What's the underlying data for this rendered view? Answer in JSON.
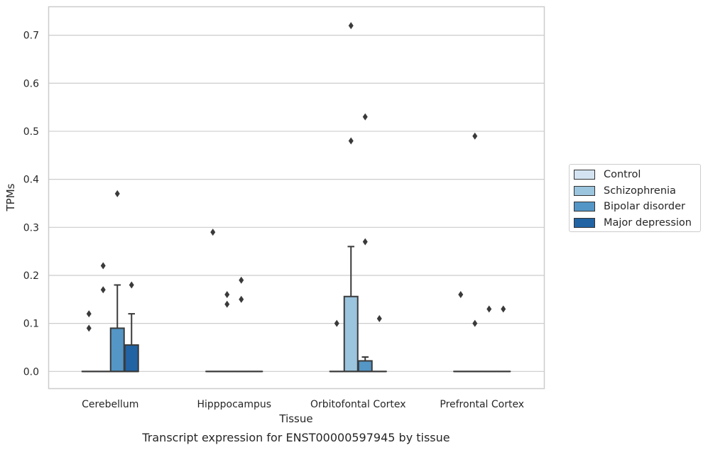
{
  "chart_data": {
    "type": "box",
    "title": "",
    "caption": "Transcript expression for ENST00000597945 by tissue",
    "xlabel": "Tissue",
    "ylabel": "TPMs",
    "ylim": [
      -0.035,
      0.76
    ],
    "yticks": [
      0.0,
      0.1,
      0.2,
      0.3,
      0.4,
      0.5,
      0.6,
      0.7
    ],
    "ytick_labels": [
      "0.0",
      "0.1",
      "0.2",
      "0.3",
      "0.4",
      "0.5",
      "0.6",
      "0.7"
    ],
    "grid": "horizontal",
    "legend_position": "right",
    "categories": [
      "Cerebellum",
      "Hipppocampus",
      "Orbitofontal Cortex",
      "Prefrontal Cortex"
    ],
    "series": [
      {
        "name": "Control",
        "color": "#d4e3f1",
        "boxes": [
          {
            "q1": 0.0,
            "median": 0.0,
            "q3": 0.0,
            "whisker_low": 0.0,
            "whisker_high": 0.0,
            "outliers": [
              0.09,
              0.12
            ]
          },
          {
            "q1": 0.0,
            "median": 0.0,
            "q3": 0.0,
            "whisker_low": 0.0,
            "whisker_high": 0.0,
            "outliers": [
              0.29
            ]
          },
          {
            "q1": 0.0,
            "median": 0.0,
            "q3": 0.0,
            "whisker_low": 0.0,
            "whisker_high": 0.0,
            "outliers": [
              0.1
            ]
          },
          {
            "q1": 0.0,
            "median": 0.0,
            "q3": 0.0,
            "whisker_low": 0.0,
            "whisker_high": 0.0,
            "outliers": [
              0.16
            ]
          }
        ]
      },
      {
        "name": "Schizophrenia",
        "color": "#9bc4de",
        "boxes": [
          {
            "q1": 0.0,
            "median": 0.0,
            "q3": 0.0,
            "whisker_low": 0.0,
            "whisker_high": 0.0,
            "outliers": [
              0.17,
              0.22
            ]
          },
          {
            "q1": 0.0,
            "median": 0.0,
            "q3": 0.0,
            "whisker_low": 0.0,
            "whisker_high": 0.0,
            "outliers": [
              0.14,
              0.16
            ]
          },
          {
            "q1": 0.0,
            "median": 0.0,
            "q3": 0.156,
            "whisker_low": 0.0,
            "whisker_high": 0.26,
            "outliers": [
              0.48,
              0.72
            ]
          },
          {
            "q1": 0.0,
            "median": 0.0,
            "q3": 0.0,
            "whisker_low": 0.0,
            "whisker_high": 0.0,
            "outliers": [
              0.1,
              0.49
            ]
          }
        ]
      },
      {
        "name": "Bipolar disorder",
        "color": "#5496c6",
        "boxes": [
          {
            "q1": 0.0,
            "median": 0.0,
            "q3": 0.09,
            "whisker_low": 0.0,
            "whisker_high": 0.18,
            "outliers": [
              0.37
            ]
          },
          {
            "q1": 0.0,
            "median": 0.0,
            "q3": 0.0,
            "whisker_low": 0.0,
            "whisker_high": 0.0,
            "outliers": [
              0.15,
              0.19
            ]
          },
          {
            "q1": 0.0,
            "median": 0.0,
            "q3": 0.022,
            "whisker_low": 0.0,
            "whisker_high": 0.03,
            "outliers": [
              0.27,
              0.53
            ]
          },
          {
            "q1": 0.0,
            "median": 0.0,
            "q3": 0.0,
            "whisker_low": 0.0,
            "whisker_high": 0.0,
            "outliers": [
              0.13
            ]
          }
        ]
      },
      {
        "name": "Major depression",
        "color": "#2163a3",
        "boxes": [
          {
            "q1": 0.0,
            "median": 0.0,
            "q3": 0.055,
            "whisker_low": 0.0,
            "whisker_high": 0.12,
            "outliers": [
              0.18
            ]
          },
          {
            "q1": 0.0,
            "median": 0.0,
            "q3": 0.0,
            "whisker_low": 0.0,
            "whisker_high": 0.0,
            "outliers": []
          },
          {
            "q1": 0.0,
            "median": 0.0,
            "q3": 0.0,
            "whisker_low": 0.0,
            "whisker_high": 0.0,
            "outliers": [
              0.11
            ]
          },
          {
            "q1": 0.0,
            "median": 0.0,
            "q3": 0.0,
            "whisker_low": 0.0,
            "whisker_high": 0.0,
            "outliers": [
              0.13
            ]
          }
        ]
      }
    ]
  }
}
